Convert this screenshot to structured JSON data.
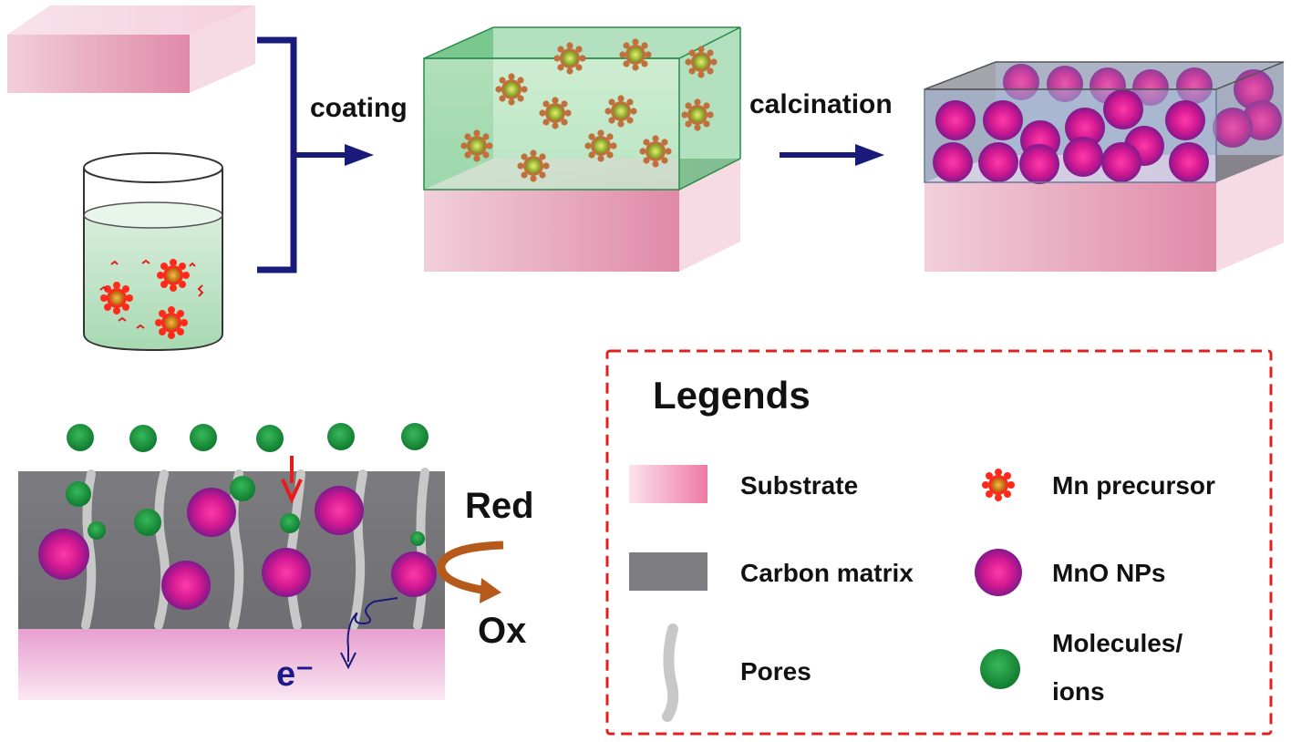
{
  "steps": {
    "coating": "coating",
    "calcination": "calcination"
  },
  "reaction": {
    "red": "Red",
    "ox": "Ox",
    "electron": "e⁻"
  },
  "legend": {
    "title": "Legends",
    "items": {
      "substrate": "Substrate",
      "carbon_matrix": "Carbon matrix",
      "pores": "Pores",
      "mn_precursor": "Mn precursor",
      "mno_nps": "MnO NPs",
      "molecules_line1": "Molecules/",
      "molecules_line2": "ions"
    }
  },
  "colors": {
    "substrate": "#e8a3bb",
    "film": "#8ed4a0",
    "carbon": "#7a7a7e",
    "pore": "#c8c8c8",
    "mno": "#c0158f",
    "molecule": "#1f9a3f",
    "precursor": "#e02020",
    "arrow": "#1a1a7a",
    "reaction_arrow": "#b55a1a",
    "legend_border": "#e02020"
  }
}
